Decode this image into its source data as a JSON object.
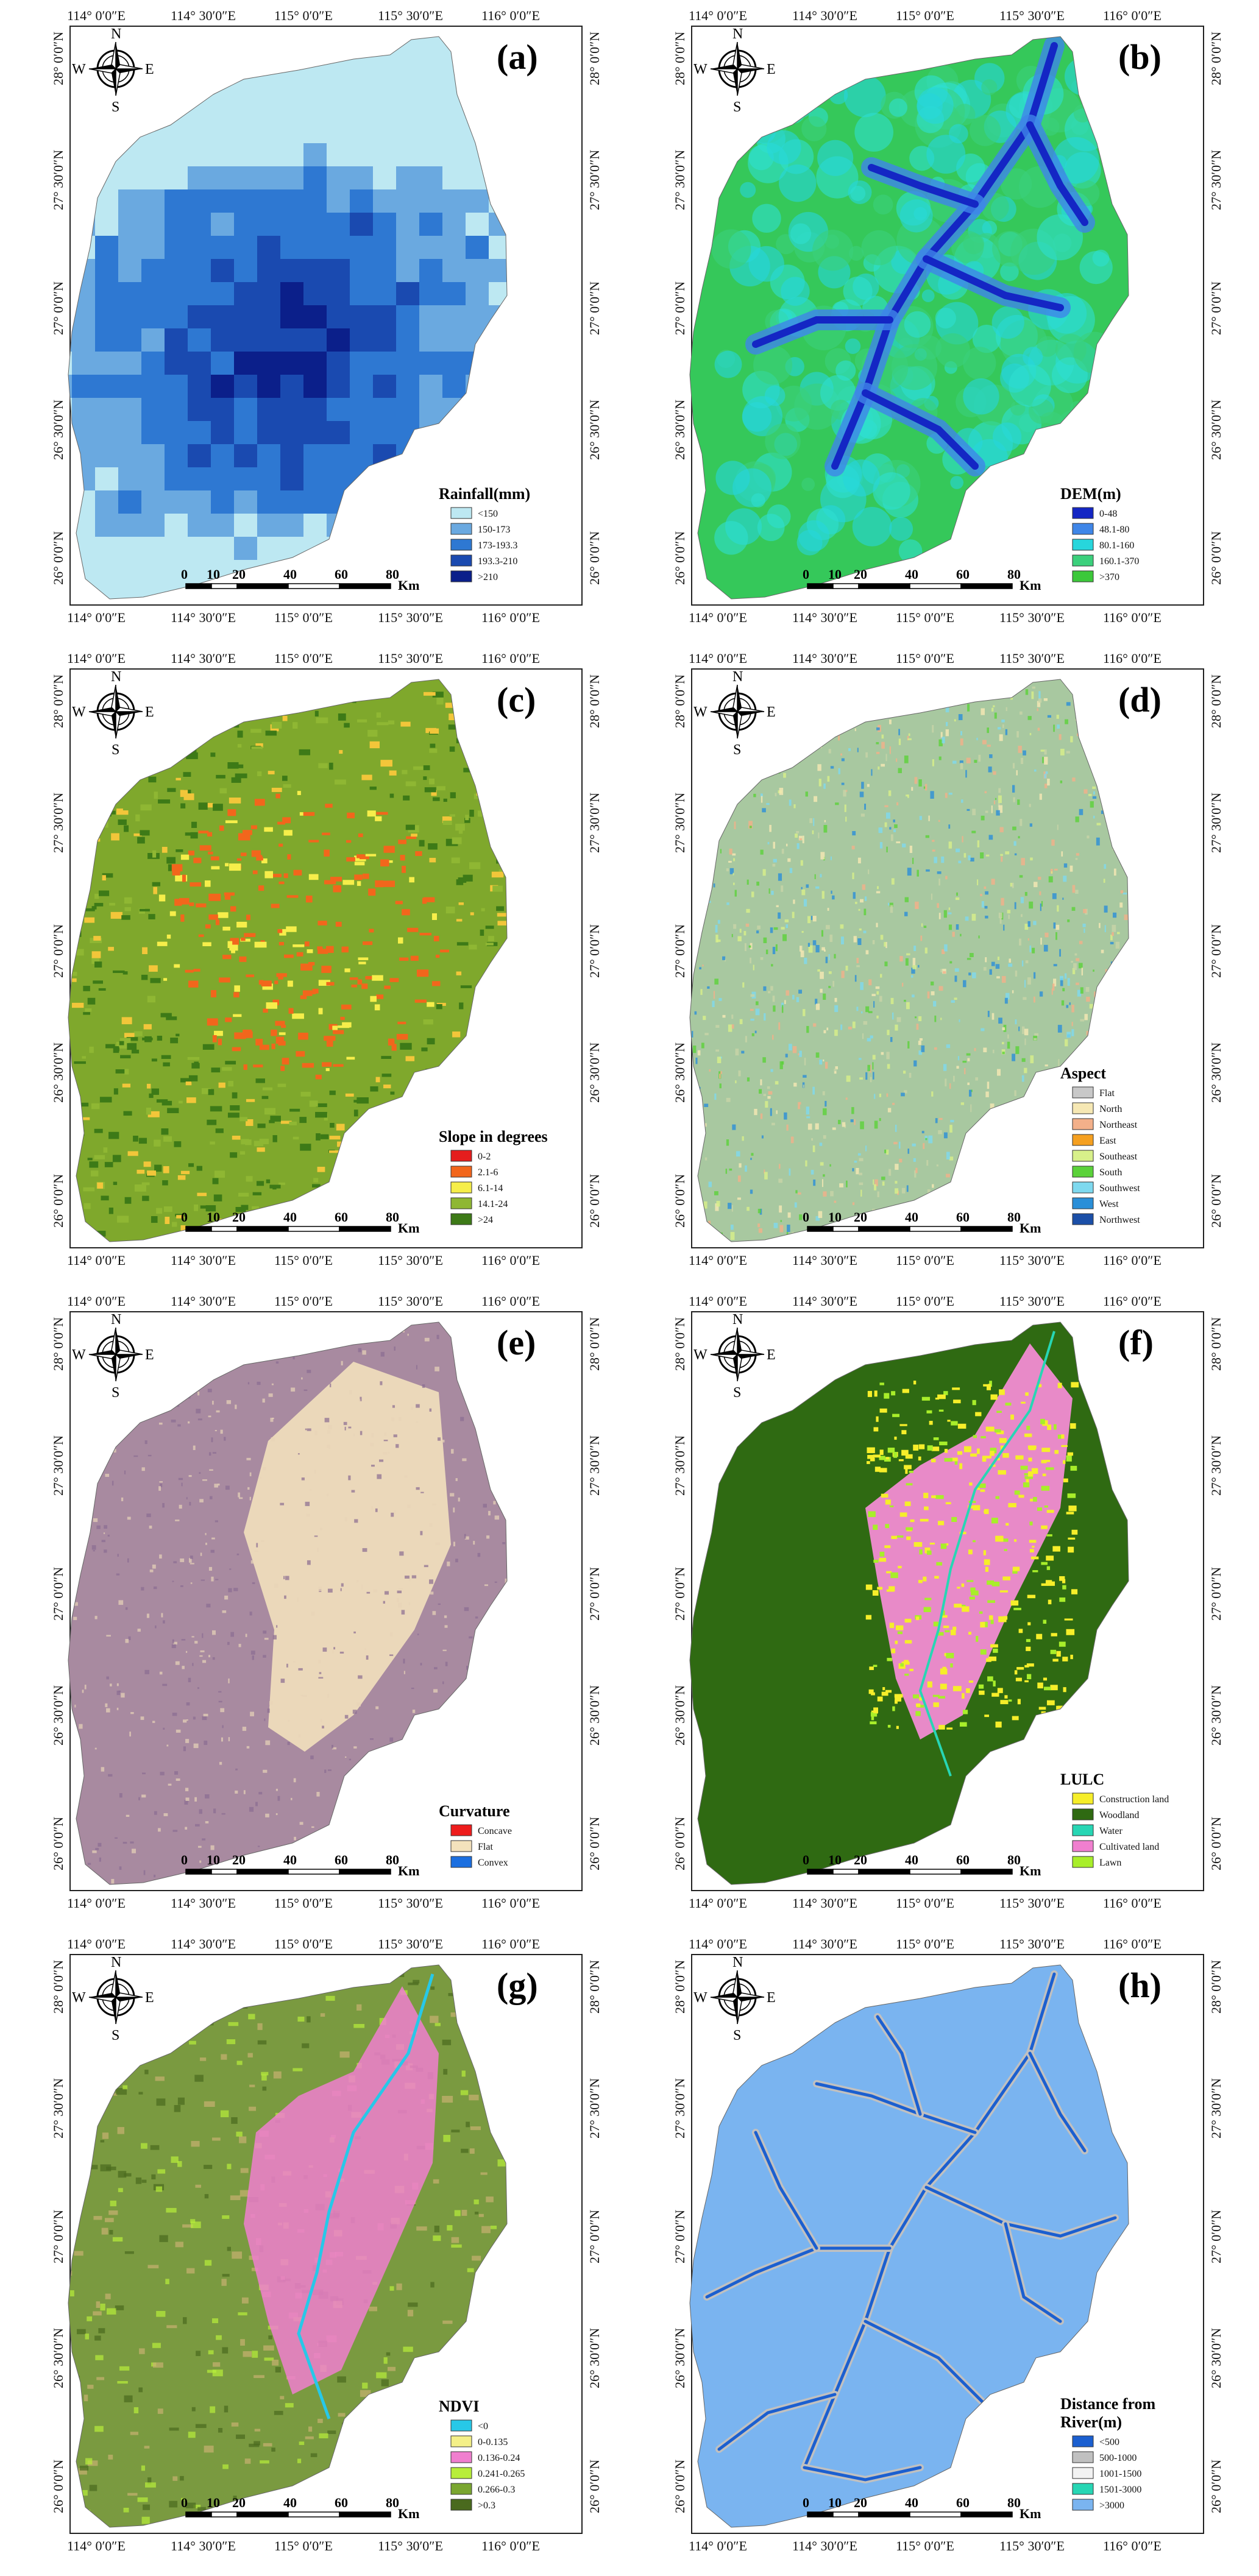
{
  "figure": {
    "lon_ticks": [
      "114° 0′0″E",
      "114° 30′0″E",
      "115° 0′0″E",
      "115° 30′0″E",
      "116° 0′0″E"
    ],
    "lat_ticks": [
      "28° 0′0″N",
      "27° 30′0″N",
      "27° 0′0″N",
      "26° 30′0″N",
      "26° 0′0″N"
    ],
    "compass": {
      "n": "N",
      "s": "S",
      "e": "E",
      "w": "W"
    },
    "scale": {
      "labels": [
        "0",
        "10",
        "20",
        "40",
        "60",
        "80"
      ],
      "unit": "Km"
    }
  },
  "panels": [
    {
      "id": "a",
      "label": "(a)",
      "style": "rainfall",
      "legend_title": "Rainfall(mm)",
      "legend": [
        {
          "color": "#bde8f2",
          "text": "<150"
        },
        {
          "color": "#6aa9e0",
          "text": "150-173"
        },
        {
          "color": "#2e78d2",
          "text": "173-193.3"
        },
        {
          "color": "#1a4ab0",
          "text": "193.3-210"
        },
        {
          "color": "#0b1f8a",
          "text": ">210"
        }
      ]
    },
    {
      "id": "b",
      "label": "(b)",
      "style": "dem",
      "legend_title": "DEM(m)",
      "legend": [
        {
          "color": "#1426c4",
          "text": "0-48"
        },
        {
          "color": "#3f86e8",
          "text": "48.1-80"
        },
        {
          "color": "#27d6dc",
          "text": "80.1-160"
        },
        {
          "color": "#3bd07c",
          "text": "160.1-370"
        },
        {
          "color": "#3cc83a",
          "text": ">370"
        }
      ]
    },
    {
      "id": "c",
      "label": "(c)",
      "style": "slope",
      "legend_title": "Slope in degrees",
      "legend": [
        {
          "color": "#e51d1d",
          "text": "0-2"
        },
        {
          "color": "#f2661c",
          "text": "2.1-6"
        },
        {
          "color": "#f6ee4a",
          "text": "6.1-14"
        },
        {
          "color": "#8fb733",
          "text": "14.1-24"
        },
        {
          "color": "#3d7a17",
          "text": ">24"
        }
      ]
    },
    {
      "id": "d",
      "label": "(d)",
      "style": "aspect",
      "legend_title": "Aspect",
      "legend": [
        {
          "color": "#c8c8c8",
          "text": "Flat"
        },
        {
          "color": "#f6e8b4",
          "text": "North"
        },
        {
          "color": "#f3b08a",
          "text": "Northeast"
        },
        {
          "color": "#f5a020",
          "text": "East"
        },
        {
          "color": "#d8f08a",
          "text": "Southeast"
        },
        {
          "color": "#5bd23a",
          "text": "South"
        },
        {
          "color": "#7ed9ef",
          "text": "Southwest"
        },
        {
          "color": "#2a8fd8",
          "text": "West"
        },
        {
          "color": "#1b4fa8",
          "text": "Northwest"
        }
      ]
    },
    {
      "id": "e",
      "label": "(e)",
      "style": "curvature",
      "legend_title": "Curvature",
      "legend": [
        {
          "color": "#ee1c1c",
          "text": "Concave"
        },
        {
          "color": "#f4e2bc",
          "text": "Flat"
        },
        {
          "color": "#1b6fe0",
          "text": "Convex"
        }
      ]
    },
    {
      "id": "f",
      "label": "(f)",
      "style": "lulc",
      "legend_title": "LULC",
      "legend": [
        {
          "color": "#f6ee2a",
          "text": "Construction land"
        },
        {
          "color": "#2f6a12",
          "text": "Woodland"
        },
        {
          "color": "#27d6b4",
          "text": "Water"
        },
        {
          "color": "#f07fcf",
          "text": "Cultivated land"
        },
        {
          "color": "#a8ee2a",
          "text": "Lawn"
        }
      ]
    },
    {
      "id": "g",
      "label": "(g)",
      "style": "ndvi",
      "legend_title": "NDVI",
      "legend": [
        {
          "color": "#27c8e8",
          "text": "<0"
        },
        {
          "color": "#f4f088",
          "text": "0-0.135"
        },
        {
          "color": "#f07fcf",
          "text": "0.136-0.24"
        },
        {
          "color": "#b8ee3a",
          "text": "0.241-0.265"
        },
        {
          "color": "#7aa630",
          "text": "0.266-0.3"
        },
        {
          "color": "#4a6a1e",
          "text": ">0.3"
        }
      ]
    },
    {
      "id": "h",
      "label": "(h)",
      "style": "river",
      "legend_title": "Distance from River(m)",
      "legend": [
        {
          "color": "#1b5fd0",
          "text": "<500"
        },
        {
          "color": "#c0c0c0",
          "text": "500-1000"
        },
        {
          "color": "#f2f2f2",
          "text": "1001-1500"
        },
        {
          "color": "#27d6b4",
          "text": "1501-3000"
        },
        {
          "color": "#7ab4f0",
          "text": ">3000"
        }
      ]
    }
  ]
}
